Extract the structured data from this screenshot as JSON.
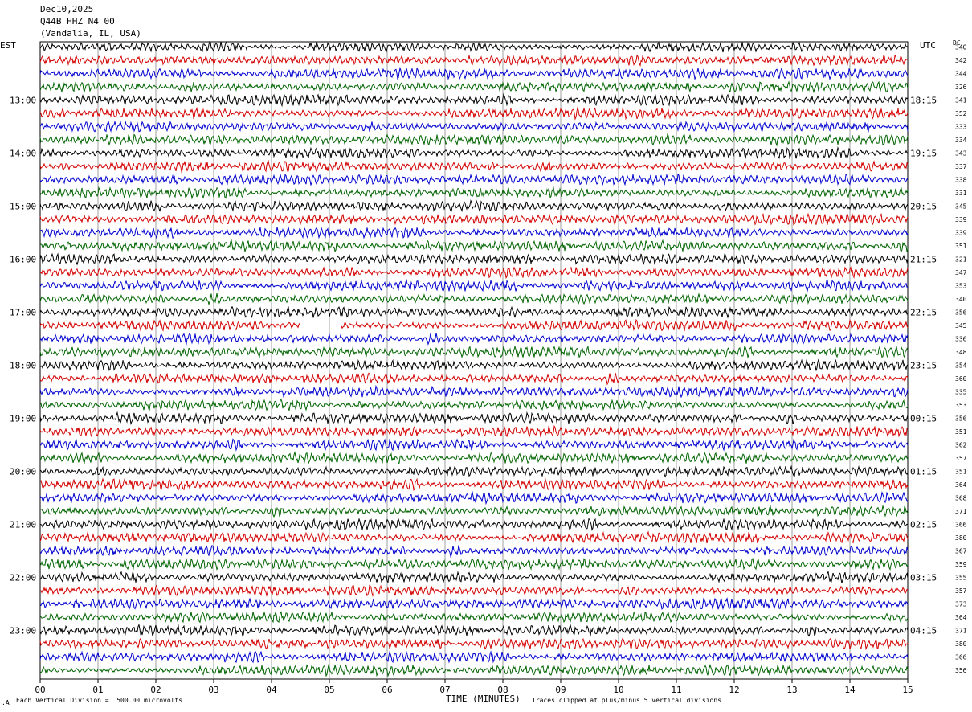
{
  "header": {
    "date": "Dec10,2025",
    "station": "Q44B HHZ N4 00",
    "location": "(Vandalia, IL, USA)"
  },
  "axes": {
    "left_tz": "EST",
    "right_tz": "UTC",
    "dc_label": "DC",
    "xlabel": "TIME (MINUTES)",
    "scale_note": "Each Vertical Division =  500.00 microvolts",
    "clip_note": "Traces clipped at plus/minus 5 vertical divisions"
  },
  "chart_data": {
    "type": "line",
    "xlabel": "TIME (MINUTES)",
    "xlim": [
      0,
      15
    ],
    "x_ticks": [
      "00",
      "01",
      "02",
      "03",
      "04",
      "05",
      "06",
      "07",
      "08",
      "09",
      "10",
      "11",
      "12",
      "13",
      "14",
      "15"
    ],
    "rows_per_hour": 4,
    "row_minutes": 15,
    "start_hour_est": 12,
    "end_hour_est": 23,
    "trace_colors": [
      "#000000",
      "#d40000",
      "#0000d0",
      "#006400"
    ],
    "left_hour_labels": [
      "13:00",
      "14:00",
      "15:00",
      "16:00",
      "17:00",
      "18:00",
      "19:00",
      "20:00",
      "21:00",
      "22:00",
      "23:00"
    ],
    "right_hour_labels": [
      "18:15",
      "19:15",
      "20:15",
      "21:15",
      "22:15",
      "23:15",
      "00:15",
      "01:15",
      "02:15",
      "03:15",
      "04:15"
    ],
    "dc_offsets": [
      340,
      342,
      344,
      326,
      341,
      352,
      333,
      334,
      343,
      337,
      338,
      331,
      345,
      339,
      339,
      351,
      321,
      347,
      353,
      340,
      356,
      345,
      336,
      348,
      354,
      360,
      335,
      353,
      356,
      351,
      362,
      357,
      351,
      364,
      368,
      371,
      366,
      380,
      367,
      359,
      355,
      357,
      373,
      364,
      371,
      380,
      366,
      356
    ],
    "gaps": [
      {
        "row": 21,
        "start_min": 4.5,
        "end_min": 5.2
      }
    ]
  }
}
